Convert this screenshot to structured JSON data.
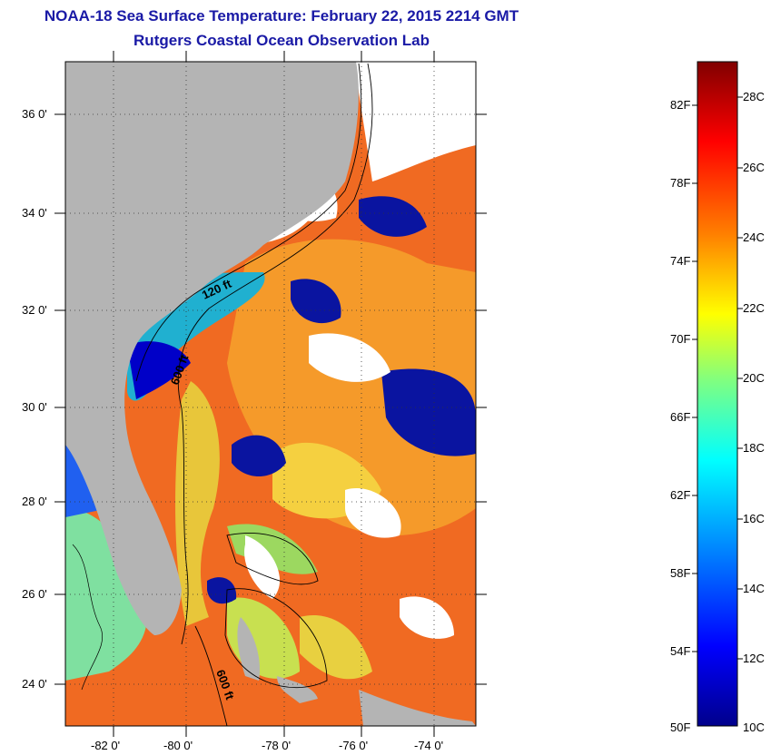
{
  "header": {
    "title": "NOAA-18 Sea Surface Temperature:  February 22, 2015 2214 GMT",
    "subtitle": "Rutgers Coastal Ocean Observation Lab"
  },
  "map": {
    "lat_labels": [
      "36 0'",
      "34 0'",
      "32 0'",
      "30 0'",
      "28 0'",
      "26 0'",
      "24 0'"
    ],
    "lon_labels": [
      "-82 0'",
      "-80 0'",
      "-78 0'",
      "-76 0'",
      "-74 0'"
    ],
    "contour_labels": [
      "120 ft",
      "600 ft",
      "600 ft"
    ],
    "colors": {
      "land": "#b4b4b4",
      "cloud": "#ffffff",
      "cold": "#00008b",
      "warm": "#e8501e"
    }
  },
  "colorbar": {
    "fahrenheit_labels": [
      "82F",
      "78F",
      "74F",
      "70F",
      "66F",
      "62F",
      "58F",
      "54F",
      "50F"
    ],
    "celsius_labels": [
      "28C",
      "26C",
      "24C",
      "22C",
      "20C",
      "18C",
      "16C",
      "14C",
      "12C",
      "10C"
    ],
    "colors": [
      "#00008b",
      "#0000ff",
      "#0080ff",
      "#00ffff",
      "#80ff80",
      "#ffff00",
      "#ff8000",
      "#ff0000",
      "#800000"
    ]
  }
}
